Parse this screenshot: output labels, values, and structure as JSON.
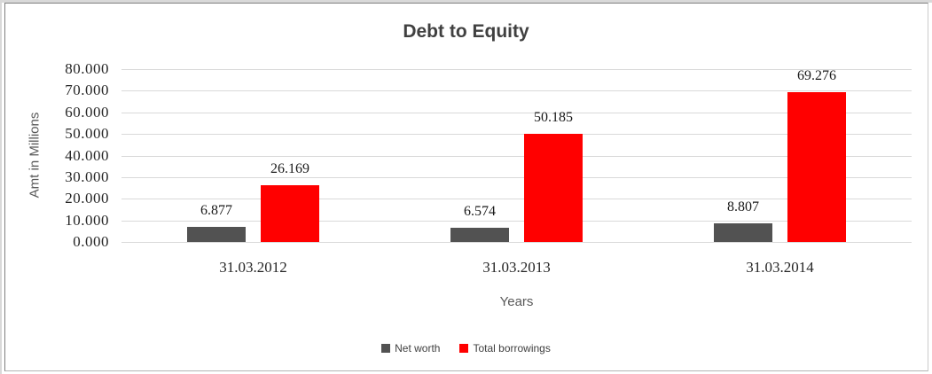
{
  "chart_data": {
    "type": "bar",
    "title": "Debt to Equity",
    "xlabel": "Years",
    "ylabel": "Amt in Millions",
    "categories": [
      "31.03.2012",
      "31.03.2013",
      "31.03.2014"
    ],
    "series": [
      {
        "name": "Net worth",
        "color": "#525252",
        "values": [
          6.877,
          6.574,
          8.807
        ]
      },
      {
        "name": "Total borrowings",
        "color": "#ff0000",
        "values": [
          26.169,
          50.185,
          69.276
        ]
      }
    ],
    "data_labels": [
      "6.877",
      "26.169",
      "6.574",
      "50.185",
      "8.807",
      "69.276"
    ],
    "ylim": [
      0,
      80
    ],
    "ytick_step": 10,
    "ytick_labels": [
      "0.000",
      "10.000",
      "20.000",
      "30.000",
      "40.000",
      "50.000",
      "60.000",
      "70.000",
      "80.000"
    ],
    "ytick_format_decimals": 3,
    "grid": true,
    "legend_position": "bottom",
    "colors": {
      "title_text": "#404040",
      "axis_title_text": "#595959",
      "tick_label_text": "#262626",
      "data_label_text": "#1a1a1a",
      "gridline": "#d9d9d9",
      "background": "#ffffff"
    }
  }
}
